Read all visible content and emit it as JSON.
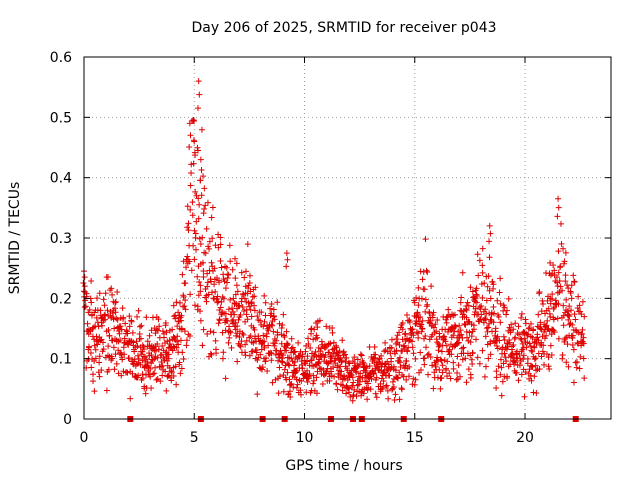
{
  "chart_data": {
    "type": "scatter",
    "title": "Day 206 of 2025, SRMTID for receiver p043",
    "xlabel": "GPS time / hours",
    "ylabel": "SRMTID / TECUs",
    "xlim": [
      0,
      23.9
    ],
    "ylim": [
      0,
      0.6
    ],
    "xticks": [
      "0",
      "5",
      "10",
      "15",
      "20"
    ],
    "xtick_values": [
      0,
      5,
      10,
      15,
      20
    ],
    "yticks": [
      "0",
      "0.1",
      "0.2",
      "0.3",
      "0.4",
      "0.5",
      "0.6"
    ],
    "ytick_values": [
      0,
      0.1,
      0.2,
      0.3,
      0.4,
      0.5,
      0.6
    ],
    "grid": true,
    "marker": "+",
    "color": "#e00000",
    "series_name": "SRMTID",
    "profile_hours": [
      0,
      0.5,
      1,
      1.5,
      2,
      2.5,
      3,
      3.5,
      4,
      4.5,
      4.8,
      5.0,
      5.2,
      5.5,
      6,
      6.5,
      7,
      7.5,
      8,
      8.5,
      9,
      9.5,
      10,
      10.5,
      11,
      11.5,
      12,
      12.5,
      13,
      13.5,
      14,
      14.5,
      15,
      15.5,
      16,
      16.5,
      17,
      17.5,
      18,
      18.5,
      19,
      19.5,
      20,
      20.5,
      21,
      21.5,
      22,
      22.5,
      22.7
    ],
    "profile_tecu": [
      0.17,
      0.13,
      0.15,
      0.14,
      0.12,
      0.11,
      0.1,
      0.11,
      0.12,
      0.16,
      0.28,
      0.38,
      0.3,
      0.25,
      0.2,
      0.18,
      0.17,
      0.19,
      0.12,
      0.13,
      0.11,
      0.08,
      0.09,
      0.11,
      0.1,
      0.09,
      0.07,
      0.07,
      0.08,
      0.08,
      0.09,
      0.11,
      0.14,
      0.17,
      0.12,
      0.11,
      0.14,
      0.15,
      0.19,
      0.16,
      0.13,
      0.11,
      0.11,
      0.12,
      0.15,
      0.22,
      0.17,
      0.13,
      0.13
    ],
    "peaks": [
      {
        "x": 5.2,
        "y": 0.56
      },
      {
        "x": 4.8,
        "y": 0.49
      },
      {
        "x": 5.0,
        "y": 0.46
      },
      {
        "x": 5.3,
        "y": 0.43
      },
      {
        "x": 21.5,
        "y": 0.365
      },
      {
        "x": 18.4,
        "y": 0.32
      },
      {
        "x": 9.2,
        "y": 0.275
      },
      {
        "x": 0.0,
        "y": 0.245
      }
    ],
    "data_gap_markers_hours": [
      2.1,
      5.3,
      8.1,
      9.1,
      11.2,
      12.2,
      12.6,
      14.5,
      16.2,
      22.3
    ]
  }
}
